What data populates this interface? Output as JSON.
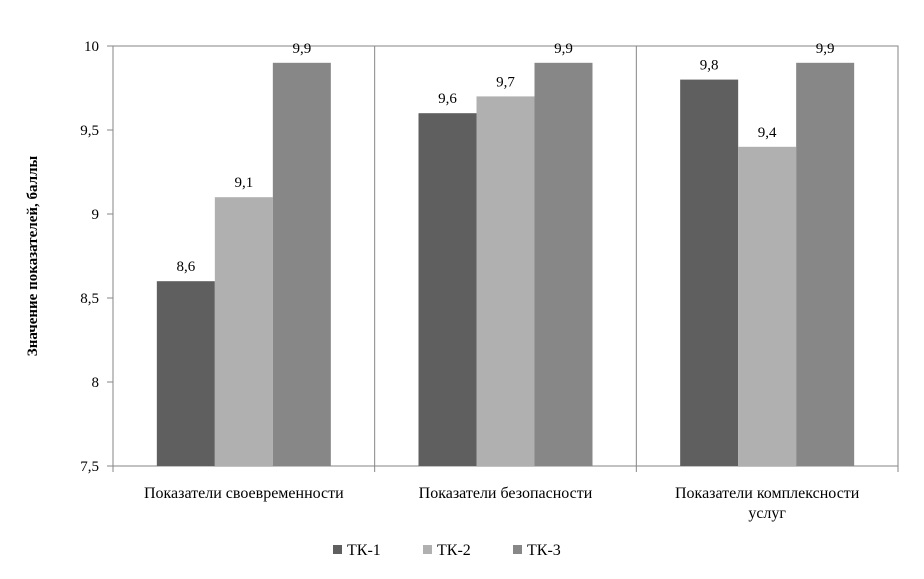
{
  "chart_data": {
    "type": "bar",
    "title": "",
    "xlabel": "",
    "ylabel": "Значение показателей, баллы",
    "ylim": [
      7.5,
      10
    ],
    "yticks": [
      "7,5",
      "8",
      "8,5",
      "9",
      "9,5",
      "10"
    ],
    "ytick_values": [
      7.5,
      8,
      8.5,
      9,
      9.5,
      10
    ],
    "grid": "vertical separators between categories",
    "legend_position": "bottom",
    "categories": [
      [
        "Показатели своевременности"
      ],
      [
        "Показатели безопасности"
      ],
      [
        "Показатели комплексности",
        "услуг"
      ]
    ],
    "series": [
      {
        "name": "ТК-1",
        "color": "#5f5f5f",
        "values": [
          8.6,
          9.6,
          9.8
        ],
        "labels": [
          "8,6",
          "9,6",
          "9,8"
        ]
      },
      {
        "name": "ТК-2",
        "color": "#b0b0b0",
        "values": [
          9.1,
          9.7,
          9.4
        ],
        "labels": [
          "9,1",
          "9,7",
          "9,4"
        ]
      },
      {
        "name": "ТК-3",
        "color": "#878787",
        "values": [
          9.9,
          9.9,
          9.9
        ],
        "labels": [
          "9,9",
          "9,9",
          "9,9"
        ]
      }
    ]
  }
}
